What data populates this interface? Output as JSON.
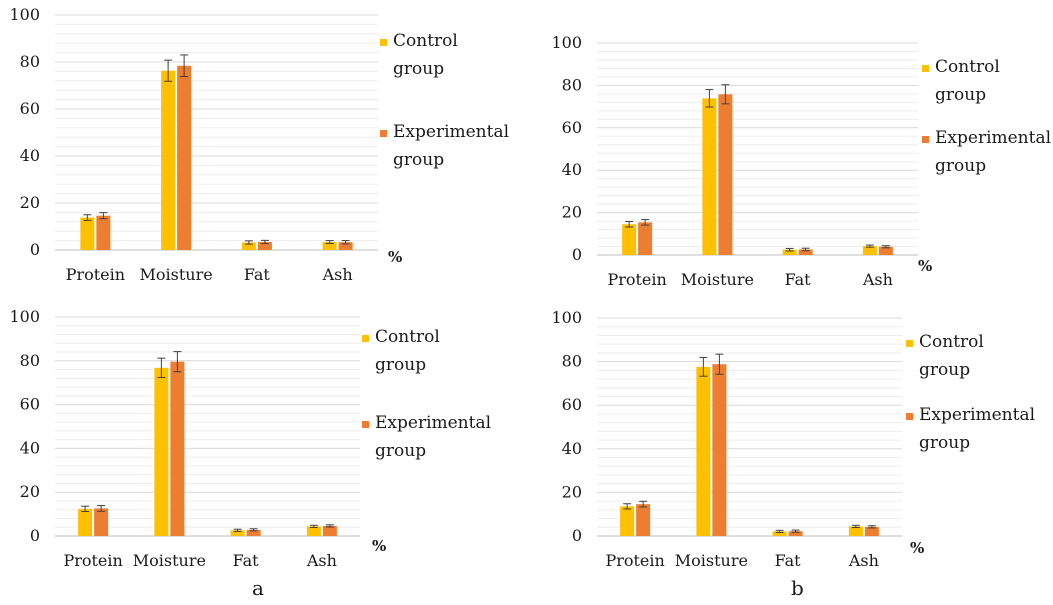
{
  "colors": {
    "control": "#FFC000",
    "experimental": "#ED7D31",
    "grid": "#D9D9D9",
    "axis": "#BFBFBF",
    "error": "#404040",
    "text": "#1A1A1A"
  },
  "panel_labels": {
    "left": "a",
    "right": "b"
  },
  "chart_data": [
    {
      "type": "bar",
      "categories": [
        "Protein",
        "Moisture",
        "Fat",
        "Ash"
      ],
      "series": [
        {
          "name": "Control group",
          "values": [
            13.8,
            76.3,
            3.2,
            3.4
          ],
          "errors": [
            1.2,
            4.5,
            0.7,
            0.6
          ]
        },
        {
          "name": "Experimental group",
          "values": [
            14.6,
            78.4,
            3.4,
            3.3
          ],
          "errors": [
            1.3,
            4.6,
            0.7,
            0.7
          ]
        }
      ],
      "ylim": [
        0,
        100
      ],
      "yticks": [
        0,
        20,
        40,
        60,
        80,
        100
      ],
      "unit_label": "%",
      "grid": true,
      "legend": "right"
    },
    {
      "type": "bar",
      "categories": [
        "Protein",
        "Moisture",
        "Fat",
        "Ash"
      ],
      "series": [
        {
          "name": "Control group",
          "values": [
            14.5,
            73.9,
            2.5,
            4.2
          ],
          "errors": [
            1.3,
            4.1,
            0.6,
            0.5
          ]
        },
        {
          "name": "Experimental group",
          "values": [
            15.4,
            75.8,
            2.6,
            3.9
          ],
          "errors": [
            1.3,
            4.5,
            0.6,
            0.5
          ]
        }
      ],
      "ylim": [
        0,
        100
      ],
      "yticks": [
        0,
        20,
        40,
        60,
        80,
        100
      ],
      "unit_label": "%",
      "grid": true,
      "legend": "right"
    },
    {
      "type": "bar",
      "categories": [
        "Protein",
        "Moisture",
        "Fat",
        "Ash"
      ],
      "series": [
        {
          "name": "Control group",
          "values": [
            12.4,
            76.8,
            2.6,
            4.4
          ],
          "errors": [
            1.2,
            4.4,
            0.5,
            0.5
          ]
        },
        {
          "name": "Experimental group",
          "values": [
            12.6,
            79.6,
            2.8,
            4.6
          ],
          "errors": [
            1.3,
            4.6,
            0.5,
            0.5
          ]
        }
      ],
      "ylim": [
        0,
        100
      ],
      "yticks": [
        0,
        20,
        40,
        60,
        80,
        100
      ],
      "unit_label": "%",
      "grid": true,
      "legend": "right"
    },
    {
      "type": "bar",
      "categories": [
        "Protein",
        "Moisture",
        "Fat",
        "Ash"
      ],
      "series": [
        {
          "name": "Control group",
          "values": [
            13.6,
            77.6,
            2.1,
            4.4
          ],
          "errors": [
            1.2,
            4.3,
            0.5,
            0.5
          ]
        },
        {
          "name": "Experimental group",
          "values": [
            14.6,
            78.8,
            2.2,
            4.2
          ],
          "errors": [
            1.3,
            4.6,
            0.5,
            0.5
          ]
        }
      ],
      "ylim": [
        0,
        100
      ],
      "yticks": [
        0,
        20,
        40,
        60,
        80,
        100
      ],
      "unit_label": "%",
      "grid": true,
      "legend": "right"
    }
  ]
}
